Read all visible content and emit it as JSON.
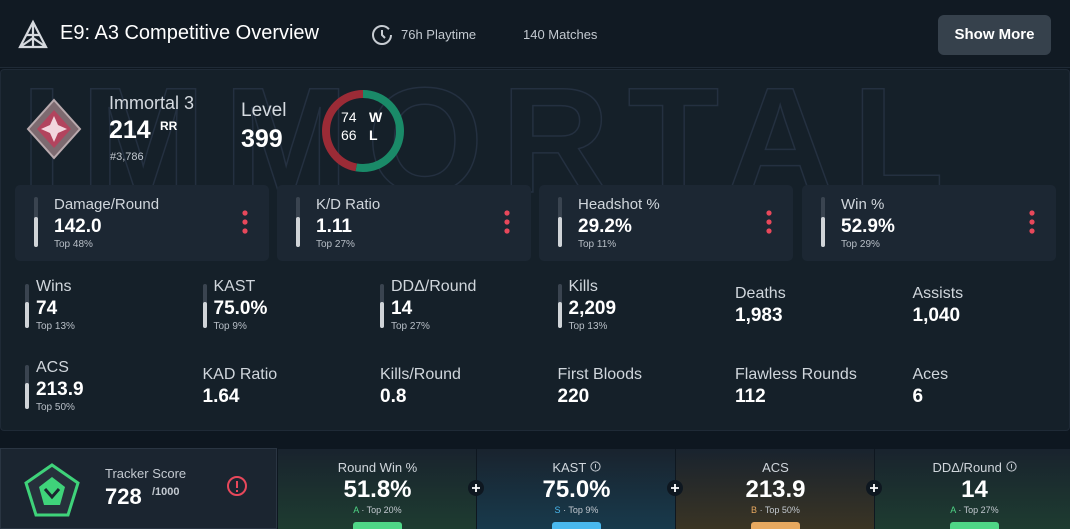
{
  "header": {
    "title": "E9: A3 Competitive Overview",
    "playtime": "76h Playtime",
    "matches": "140 Matches",
    "button": "Show More"
  },
  "rank": {
    "watermark": "IMMORTAL",
    "name": "Immortal 3",
    "rr": "214",
    "rr_unit": "RR",
    "leaderboard": "#3,786"
  },
  "level": {
    "label": "Level",
    "value": "399"
  },
  "record": {
    "wins": 74,
    "wins_label": "W",
    "losses": 66,
    "losses_label": "L"
  },
  "cards": [
    {
      "label": "Damage/Round",
      "value": "142.0",
      "rank": "Top 48%"
    },
    {
      "label": "K/D Ratio",
      "value": "1.11",
      "rank": "Top 27%"
    },
    {
      "label": "Headshot %",
      "value": "29.2%",
      "rank": "Top 11%"
    },
    {
      "label": "Win %",
      "value": "52.9%",
      "rank": "Top 29%"
    }
  ],
  "stats": [
    {
      "label": "Wins",
      "value": "74",
      "rank": "Top 13%"
    },
    {
      "label": "KAST",
      "value": "75.0%",
      "rank": "Top 9%"
    },
    {
      "label": "DDΔ/Round",
      "value": "14",
      "rank": "Top 27%"
    },
    {
      "label": "Kills",
      "value": "2,209",
      "rank": "Top 13%"
    },
    {
      "label": "Deaths",
      "value": "1,983"
    },
    {
      "label": "Assists",
      "value": "1,040"
    },
    {
      "label": "ACS",
      "value": "213.9",
      "rank": "Top 50%"
    },
    {
      "label": "KAD Ratio",
      "value": "1.64"
    },
    {
      "label": "Kills/Round",
      "value": "0.8"
    },
    {
      "label": "First Bloods",
      "value": "220"
    },
    {
      "label": "Flawless Rounds",
      "value": "112"
    },
    {
      "label": "Aces",
      "value": "6"
    }
  ],
  "tracker": {
    "label": "Tracker Score",
    "value": "728",
    "max": "/1000"
  },
  "scores": [
    {
      "label": "Round Win %",
      "value": "51.8%",
      "grade": "A",
      "rank": "· Top 20%"
    },
    {
      "label": "KAST",
      "value": "75.0%",
      "grade": "S",
      "rank": "· Top 9%"
    },
    {
      "label": "ACS",
      "value": "213.9",
      "grade": "B",
      "rank": "· Top 50%"
    },
    {
      "label": "DDΔ/Round",
      "value": "14",
      "grade": "A",
      "rank": "· Top 27%"
    }
  ]
}
